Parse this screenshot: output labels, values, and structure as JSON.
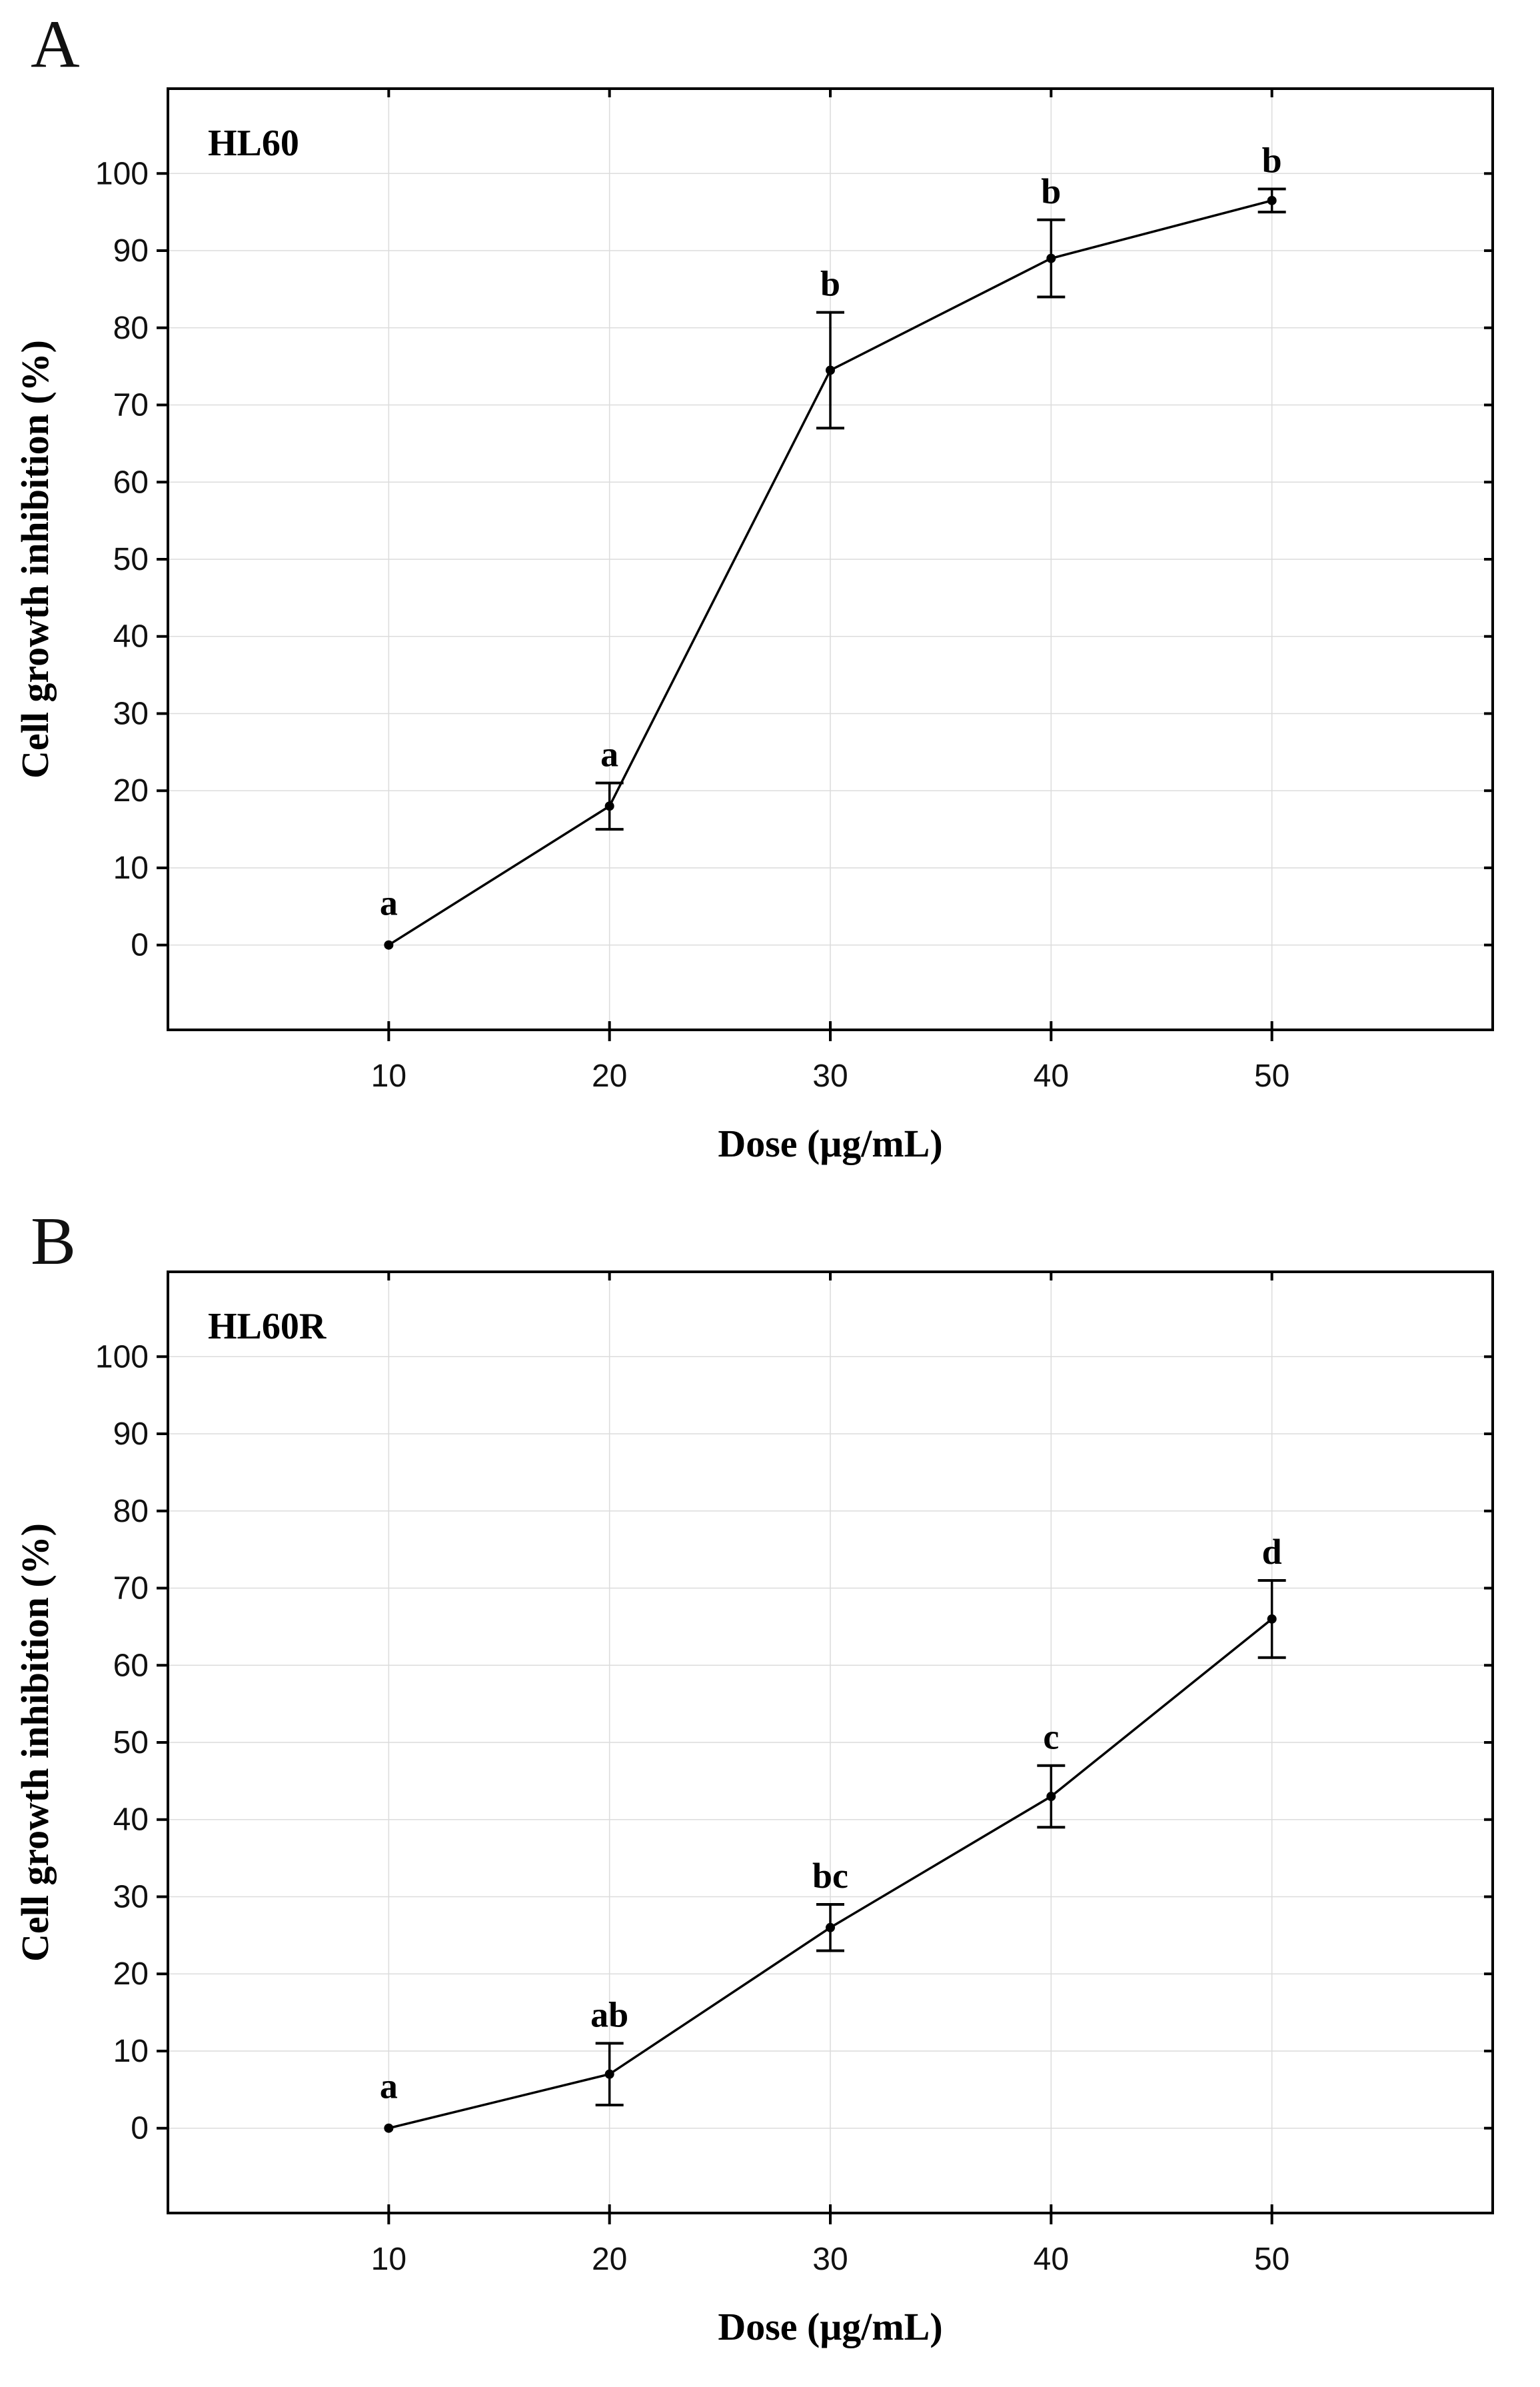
{
  "figure": {
    "background_color": "#ffffff",
    "axis_color": "#000000",
    "grid_color": "#dcdcdc",
    "series_color": "#000000",
    "tick_label_color": "#111111"
  },
  "chart_data": [
    {
      "type": "line",
      "panel_label": "A",
      "title": "HL60",
      "xlabel": "Dose (μg/mL)",
      "ylabel": "Cell growth inhibition (%)",
      "x": [
        10,
        20,
        30,
        40,
        50
      ],
      "y": [
        0,
        18,
        74.5,
        89,
        96.5
      ],
      "y_err": [
        0,
        3,
        7.5,
        5,
        1.5
      ],
      "point_labels": [
        "a",
        "a",
        "b",
        "b",
        "b"
      ],
      "x_ticks": [
        10,
        20,
        30,
        40,
        50
      ],
      "y_ticks": [
        0,
        10,
        20,
        30,
        40,
        50,
        60,
        70,
        80,
        90,
        100
      ],
      "xlim": [
        0,
        60
      ],
      "ylim": [
        -11,
        111
      ],
      "grid": true,
      "legend": "none",
      "marker": "filled-circle",
      "error_bars": true
    },
    {
      "type": "line",
      "panel_label": "B",
      "title": "HL60R",
      "xlabel": "Dose (μg/mL)",
      "ylabel": "Cell growth inhibition (%)",
      "x": [
        10,
        20,
        30,
        40,
        50
      ],
      "y": [
        0,
        7,
        26,
        43,
        66
      ],
      "y_err": [
        0,
        4,
        3,
        4,
        5
      ],
      "point_labels": [
        "a",
        "ab",
        "bc",
        "c",
        "d"
      ],
      "x_ticks": [
        10,
        20,
        30,
        40,
        50
      ],
      "y_ticks": [
        0,
        10,
        20,
        30,
        40,
        50,
        60,
        70,
        80,
        90,
        100
      ],
      "xlim": [
        0,
        60
      ],
      "ylim": [
        -11,
        111
      ],
      "grid": true,
      "legend": "none",
      "marker": "filled-circle",
      "error_bars": true
    }
  ]
}
